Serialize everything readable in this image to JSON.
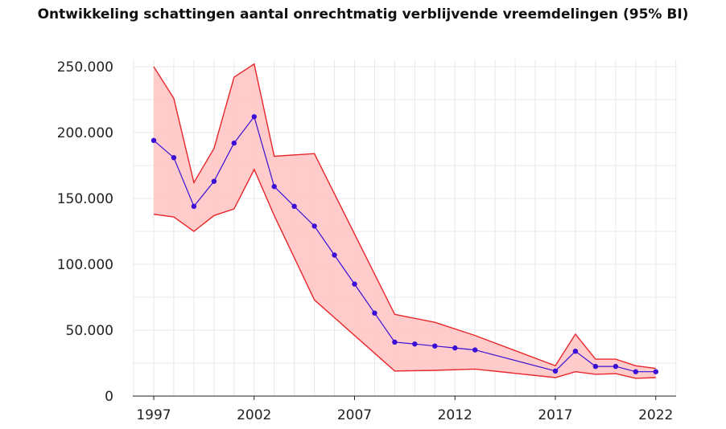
{
  "chart_data": {
    "type": "line",
    "title": "Ontwikkeling schattingen aantal onrechtmatig verblijvende vreemdelingen (95% BI)",
    "xlabel": "",
    "ylabel": "",
    "xlim": [
      1996,
      2023
    ],
    "ylim": [
      0,
      260000
    ],
    "x_ticks": [
      1997,
      2002,
      2007,
      2012,
      2017,
      2022
    ],
    "x_tick_labels": [
      "1997",
      "2002",
      "2007",
      "2012",
      "2017",
      "2022"
    ],
    "y_ticks": [
      0,
      50000,
      100000,
      150000,
      200000,
      250000
    ],
    "y_tick_labels": [
      "0",
      "50.000",
      "100.000",
      "150.000",
      "200.000",
      "250.000"
    ],
    "grid": true,
    "colors": {
      "estimate": "#3a10d6",
      "interval_line": "#e8262a",
      "interval_fill": "#ffc8c8"
    },
    "estimate": {
      "x": [
        1997,
        1998,
        1999,
        2000,
        2001,
        2002,
        2003,
        2004,
        2005,
        2006,
        2007,
        2008,
        2009,
        2010,
        2011,
        2012,
        2013,
        2017,
        2018,
        2019,
        2020,
        2021,
        2022
      ],
      "y": [
        194000,
        181000,
        144000,
        163000,
        192000,
        212000,
        159000,
        144000,
        129000,
        107000,
        85000,
        63000,
        41000,
        39500,
        38000,
        36500,
        35000,
        19000,
        34000,
        22500,
        22500,
        18500,
        18500
      ]
    },
    "upper": {
      "x": [
        1997,
        1998,
        1999,
        2000,
        2001,
        2002,
        2003,
        2005,
        2009,
        2011,
        2013,
        2017,
        2018,
        2019,
        2020,
        2021,
        2022
      ],
      "y": [
        250000,
        226000,
        162000,
        188000,
        242000,
        252000,
        182000,
        184000,
        62000,
        56000,
        46000,
        23000,
        47000,
        28000,
        28000,
        23000,
        21000
      ]
    },
    "lower": {
      "x": [
        1997,
        1998,
        1999,
        2000,
        2001,
        2002,
        2003,
        2005,
        2009,
        2011,
        2013,
        2017,
        2018,
        2019,
        2020,
        2021,
        2022
      ],
      "y": [
        138000,
        136000,
        125000,
        137000,
        142000,
        172000,
        137000,
        73000,
        19000,
        19500,
        20500,
        14000,
        18500,
        16500,
        17000,
        13500,
        14000
      ]
    }
  }
}
